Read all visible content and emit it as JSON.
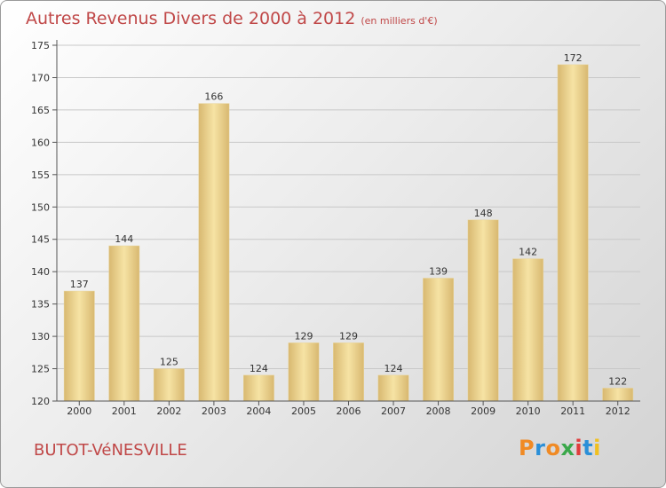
{
  "title": "Autres Revenus Divers de 2000 à 2012",
  "unit": "(en milliers d'€)",
  "city": "BUTOT-VéNESVILLE",
  "logo": "Proxiti",
  "logo_colors": [
    "#f08a24",
    "#2a8fd8",
    "#f08a24",
    "#3aa84a",
    "#e03c3c",
    "#2a8fd8",
    "#f0c020"
  ],
  "colors": {
    "title": "#c04848",
    "bar_light": "#f6e3a4",
    "bar_dark": "#d8b870",
    "grid": "#c8c8c8"
  },
  "chart_data": {
    "type": "bar",
    "categories": [
      "2000",
      "2001",
      "2002",
      "2003",
      "2004",
      "2005",
      "2006",
      "2007",
      "2008",
      "2009",
      "2010",
      "2011",
      "2012"
    ],
    "values": [
      137,
      144,
      125,
      166,
      124,
      129,
      129,
      124,
      139,
      148,
      142,
      172,
      122
    ],
    "ylim": [
      120,
      175
    ],
    "yticks": [
      120,
      125,
      130,
      135,
      140,
      145,
      150,
      155,
      160,
      165,
      170,
      175
    ],
    "grid": true
  }
}
